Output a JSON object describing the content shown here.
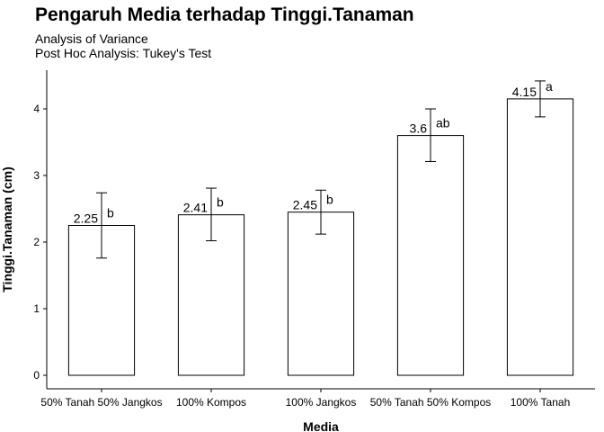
{
  "chart_data": {
    "type": "bar",
    "title": "Pengaruh Media terhadap Tinggi.Tanaman",
    "subtitle_lines": [
      "Analysis of Variance",
      "Post Hoc Analysis: Tukey's Test"
    ],
    "xlabel": "Media",
    "ylabel": "Tinggi.Tanaman (cm)",
    "ylim": [
      0,
      4.6
    ],
    "yticks": [
      0,
      1,
      2,
      3,
      4
    ],
    "categories": [
      "50% Tanah 50% Jangkos",
      "100% Kompos",
      "100% Jangkos",
      "50% Tanah 50% Kompos",
      "100% Tanah"
    ],
    "values": [
      2.25,
      2.41,
      2.45,
      3.6,
      4.15
    ],
    "value_labels": [
      "2.25",
      "2.41",
      "2.45",
      "3.6",
      "4.15"
    ],
    "error_low": [
      1.76,
      2.02,
      2.12,
      3.21,
      3.88
    ],
    "error_high": [
      2.74,
      2.81,
      2.78,
      4.0,
      4.42
    ],
    "groups": [
      "b",
      "b",
      "b",
      "ab",
      "a"
    ],
    "grid": false,
    "legend": "none",
    "bar_fill": "#ffffff",
    "bar_stroke": "#000000"
  }
}
